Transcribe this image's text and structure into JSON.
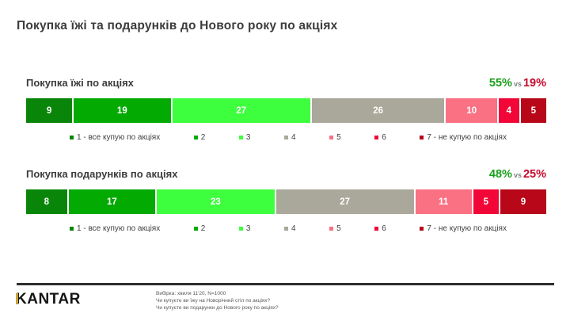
{
  "slide": {
    "title": "Покупка їжі та подарунків до Нового року по акціях"
  },
  "palette": {
    "segment_colors": [
      "#098609",
      "#02aa02",
      "#3eff3e",
      "#a9a89a",
      "#f97183",
      "#f20638",
      "#b70718"
    ],
    "positive_pct": "#1a9e1a",
    "negative_pct": "#c7082a",
    "vs": "#7f7f7f",
    "footer_rule": "#2e2e2e",
    "brand_gold": "#c7a33b"
  },
  "legend": {
    "items": [
      {
        "label": "1 - все купую по акціях"
      },
      {
        "label": "2"
      },
      {
        "label": "3"
      },
      {
        "label": "4"
      },
      {
        "label": "5"
      },
      {
        "label": "6"
      },
      {
        "label": "7 - не купую по акціях"
      }
    ]
  },
  "chart_data": [
    {
      "type": "bar",
      "orientation": "horizontal-stacked",
      "title": "Покупка їжі по акціях",
      "categories": [
        "1 - все купую по акціях",
        "2",
        "3",
        "4",
        "5",
        "6",
        "7 - не купую по акціях"
      ],
      "values": [
        9,
        19,
        27,
        26,
        10,
        4,
        5
      ],
      "positive_total": "55%",
      "vs_label": "vs",
      "negative_total": "19%",
      "xlim": [
        0,
        100
      ],
      "legend_position": "bottom"
    },
    {
      "type": "bar",
      "orientation": "horizontal-stacked",
      "title": "Покупка подарунків по акціях",
      "categories": [
        "1 - все купую по акціях",
        "2",
        "3",
        "4",
        "5",
        "6",
        "7 - не купую по акціях"
      ],
      "values": [
        8,
        17,
        23,
        27,
        11,
        5,
        9
      ],
      "positive_total": "48%",
      "vs_label": "vs",
      "negative_total": "25%",
      "xlim": [
        0,
        100
      ],
      "legend_position": "bottom"
    }
  ],
  "footer": {
    "brand": "KANTAR",
    "notes": [
      "Вибірка: хвиля 11'20, N=1000",
      "Чи купуєте ви їжу на Новорічний стіл по акціях?",
      "Чи купуєте ви подарунки до Нового року по акціях?"
    ]
  }
}
